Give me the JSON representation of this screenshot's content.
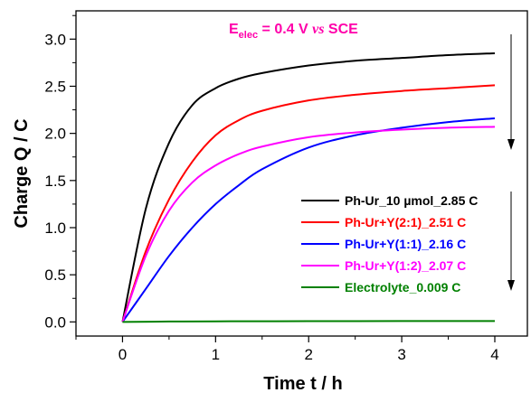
{
  "chart_data": {
    "type": "line",
    "annotation": {
      "prefix": "E",
      "subscript": "elec",
      "value": " = 0.4 V ",
      "italic": "vs",
      "suffix": " SCE",
      "color": "#ff00aa"
    },
    "xlabel": "Time t / h",
    "ylabel": "Charge Q / C",
    "xlim": [
      -0.5,
      4.35
    ],
    "ylim": [
      -0.15,
      3.3
    ],
    "xticks": [
      0,
      1,
      2,
      3,
      4
    ],
    "xtick_labels": [
      "0",
      "1",
      "2",
      "3",
      "4"
    ],
    "yticks": [
      0.0,
      0.5,
      1.0,
      1.5,
      2.0,
      2.5,
      3.0
    ],
    "ytick_labels": [
      "0.0",
      "0.5",
      "1.0",
      "1.5",
      "2.0",
      "2.5",
      "3.0"
    ],
    "grid": false,
    "legend_position": "right",
    "series": [
      {
        "name": "Ph-Ur_10 µmol_2.85 C",
        "color": "#000000",
        "x": [
          0,
          0.25,
          0.5,
          0.75,
          1.0,
          1.25,
          1.5,
          2.0,
          2.5,
          3.0,
          3.5,
          4.0
        ],
        "y": [
          0,
          1.2,
          1.9,
          2.3,
          2.48,
          2.58,
          2.64,
          2.72,
          2.77,
          2.8,
          2.83,
          2.85
        ]
      },
      {
        "name": "Ph-Ur+Y(2:1)_2.51 C",
        "color": "#ff0000",
        "x": [
          0,
          0.25,
          0.5,
          0.75,
          1.0,
          1.25,
          1.5,
          2.0,
          2.5,
          3.0,
          3.5,
          4.0
        ],
        "y": [
          0,
          0.75,
          1.3,
          1.7,
          1.98,
          2.14,
          2.24,
          2.35,
          2.41,
          2.45,
          2.48,
          2.51
        ]
      },
      {
        "name": "Ph-Ur+Y(1:1)_2.16 C",
        "color": "#0000ff",
        "x": [
          0,
          0.25,
          0.5,
          0.75,
          1.0,
          1.25,
          1.5,
          2.0,
          2.5,
          3.0,
          3.5,
          4.0
        ],
        "y": [
          0,
          0.35,
          0.7,
          1.0,
          1.25,
          1.45,
          1.62,
          1.85,
          1.98,
          2.06,
          2.12,
          2.16
        ]
      },
      {
        "name": "Ph-Ur+Y(1:2)_2.07 C",
        "color": "#ff00ff",
        "x": [
          0,
          0.25,
          0.5,
          0.75,
          1.0,
          1.25,
          1.5,
          2.0,
          2.5,
          3.0,
          3.5,
          4.0
        ],
        "y": [
          0,
          0.7,
          1.18,
          1.48,
          1.66,
          1.78,
          1.86,
          1.96,
          2.01,
          2.04,
          2.06,
          2.07
        ]
      },
      {
        "name": "Electrolyte_0.009 C",
        "color": "#008000",
        "x": [
          0,
          0.5,
          1.0,
          2.0,
          3.0,
          4.0
        ],
        "y": [
          0,
          0.004,
          0.006,
          0.008,
          0.009,
          0.009
        ]
      }
    ]
  }
}
